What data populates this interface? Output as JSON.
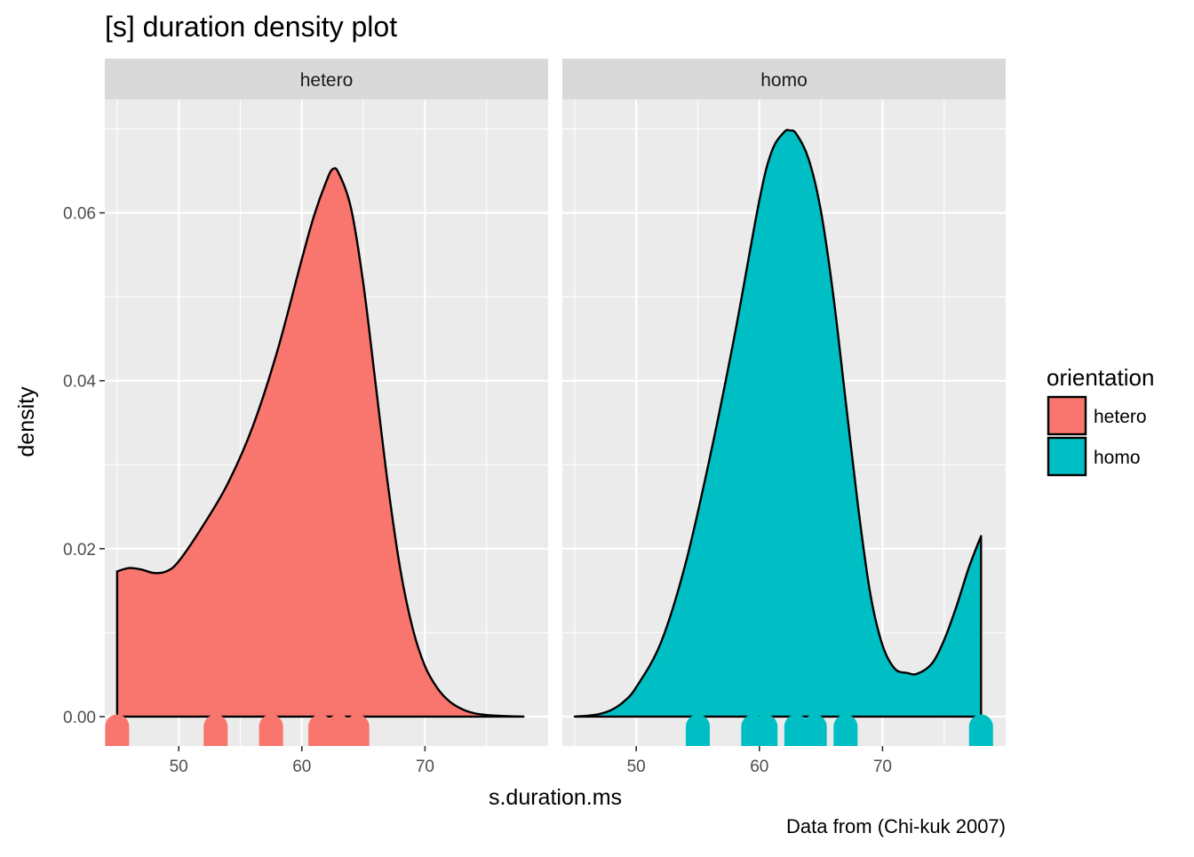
{
  "chart_data": {
    "type": "area",
    "title": "[s] duration density plot",
    "xlabel": "s.duration.ms",
    "ylabel": "density",
    "caption": "Data from (Chi-kuk 2007)",
    "xlim": [
      44,
      80
    ],
    "ylim": [
      -0.0035,
      0.0735
    ],
    "x_ticks": [
      50,
      60,
      70
    ],
    "x_tick_labels": [
      "50",
      "60",
      "70"
    ],
    "y_ticks": [
      0,
      0.02,
      0.04,
      0.06
    ],
    "y_tick_labels": [
      "0.00",
      "0.02",
      "0.04",
      "0.06"
    ],
    "grid": true,
    "legend": {
      "title": "orientation",
      "placement": "right",
      "entries": [
        {
          "label": "hetero",
          "color": "#F8766D"
        },
        {
          "label": "homo",
          "color": "#00BFC4"
        }
      ]
    },
    "panels": [
      {
        "strip": "hetero",
        "color": "#F8766D",
        "density": {
          "x": [
            45,
            46,
            47,
            48,
            49,
            50,
            52,
            54,
            56,
            58,
            60,
            61,
            62,
            62.5,
            63,
            64,
            65,
            66,
            67,
            68,
            69,
            70,
            71,
            72,
            73,
            74,
            75,
            76,
            77,
            78
          ],
          "y": [
            0.0173,
            0.0177,
            0.0175,
            0.0171,
            0.0173,
            0.0185,
            0.0228,
            0.0278,
            0.0345,
            0.0435,
            0.0545,
            0.0597,
            0.0638,
            0.0652,
            0.0647,
            0.0605,
            0.0515,
            0.0395,
            0.0275,
            0.0175,
            0.0105,
            0.006,
            0.0034,
            0.0018,
            0.0009,
            0.0004,
            0.0002,
            0.0001,
            3e-05,
            1e-05
          ]
        },
        "rug": [
          45,
          53,
          57.5,
          61.5,
          63,
          64.5
        ]
      },
      {
        "strip": "homo",
        "color": "#00BFC4",
        "density": {
          "x": [
            45,
            46,
            47,
            48,
            49,
            50,
            52,
            54,
            56,
            58,
            60,
            61,
            62,
            62.5,
            63,
            64,
            65,
            66,
            67,
            68,
            69,
            70,
            71,
            72,
            72.8,
            74,
            75,
            76,
            77,
            78
          ],
          "y": [
            1e-05,
            0.0001,
            0.0003,
            0.0008,
            0.0018,
            0.0035,
            0.0088,
            0.0182,
            0.031,
            0.0455,
            0.0615,
            0.0673,
            0.0696,
            0.0698,
            0.0694,
            0.0664,
            0.0602,
            0.0502,
            0.0377,
            0.0252,
            0.0147,
            0.0085,
            0.0057,
            0.0052,
            0.0051,
            0.0063,
            0.0091,
            0.0131,
            0.0177,
            0.0215
          ]
        },
        "rug": [
          55,
          59.5,
          60.5,
          63,
          64.5,
          67,
          78
        ]
      }
    ]
  }
}
